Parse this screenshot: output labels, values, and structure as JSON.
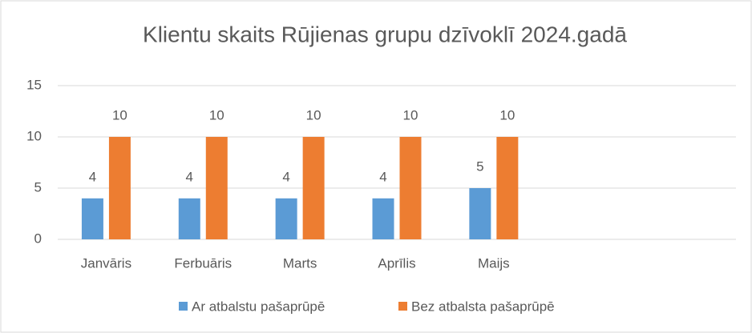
{
  "chart_data": {
    "type": "bar",
    "title": "Klientu skaits Rūjienas grupu dzīvoklī 2024.gadā",
    "categories": [
      "Janvāris",
      "Ferbuāris",
      "Marts",
      "Aprīlis",
      "Maijs",
      null,
      null
    ],
    "series": [
      {
        "name": "Ar atbalstu pašaprūpē",
        "color": "#5b9bd5",
        "values": [
          4,
          4,
          4,
          4,
          5,
          null,
          null
        ]
      },
      {
        "name": "Bez atbalsta pašaprūpē",
        "color": "#ed7d31",
        "values": [
          10,
          10,
          10,
          10,
          10,
          null,
          null
        ]
      }
    ],
    "ylim": [
      0,
      15
    ],
    "yticks": [
      0,
      5,
      10,
      15
    ],
    "grid": true,
    "legend": "bottom"
  }
}
